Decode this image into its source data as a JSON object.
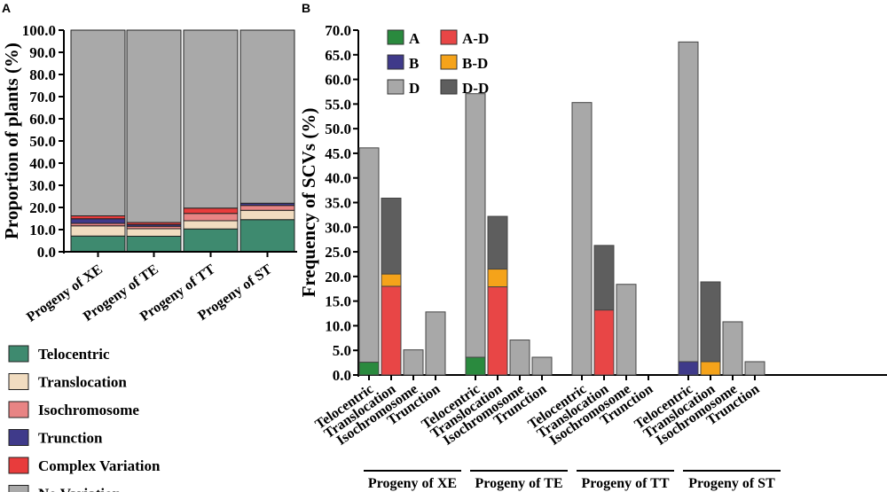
{
  "chart_data": [
    {
      "type": "bar",
      "stacked": true,
      "panel": "A",
      "ylabel": "Proportion of plants (%)",
      "ylim": [
        0,
        100
      ],
      "yticks": [
        "0.0",
        "10.0",
        "20.0",
        "30.0",
        "40.0",
        "50.0",
        "60.0",
        "70.0",
        "80.0",
        "90.0",
        "100.0"
      ],
      "categories": [
        "Progeny of XE",
        "Progeny of TE",
        "Progeny of TT",
        "Progeny of ST"
      ],
      "legend_placement": "bottom",
      "series": [
        {
          "name": "Telocentric",
          "color": "#3e8a6f",
          "values": [
            7.1,
            7.0,
            10.3,
            14.5
          ]
        },
        {
          "name": "Translocation",
          "color": "#f1dcc0",
          "values": [
            4.6,
            3.4,
            3.7,
            4.2
          ]
        },
        {
          "name": "Isochromosome",
          "color": "#e88484",
          "values": [
            1.1,
            1.1,
            3.3,
            2.2
          ]
        },
        {
          "name": "Trunction",
          "color": "#3f3a8a",
          "values": [
            2.1,
            0.8,
            0,
            1.0
          ]
        },
        {
          "name": "Complex Variation",
          "color": "#e83c3c",
          "values": [
            1.3,
            0.9,
            2.4,
            0
          ]
        },
        {
          "name": "No Variation",
          "color": "#a9a9a9",
          "values": [
            83.8,
            86.8,
            80.3,
            78.1
          ]
        }
      ]
    },
    {
      "type": "bar",
      "stacked": true,
      "panel": "B",
      "ylabel": "Frequency of SCVs (%)",
      "ylim": [
        0,
        70
      ],
      "yticks": [
        "0.0",
        "5.0",
        "10.0",
        "15.0",
        "20.0",
        "25.0",
        "30.0",
        "35.0",
        "40.0",
        "45.0",
        "50.0",
        "55.0",
        "60.0",
        "65.0",
        "70.0"
      ],
      "groups": [
        "Progeny of XE",
        "Progeny of TE",
        "Progeny of TT",
        "Progeny of ST"
      ],
      "categories": [
        "Telocentric",
        "Translocation",
        "Isochromosome",
        "Trunction"
      ],
      "legend_placement": "top-left",
      "series": [
        {
          "name": "A",
          "color": "#2a8a3e",
          "values": [
            [
              2.6,
              0,
              0,
              0
            ],
            [
              3.6,
              0,
              0,
              0
            ],
            [
              0,
              0,
              0,
              0
            ],
            [
              0,
              0,
              0,
              0
            ]
          ]
        },
        {
          "name": "B",
          "color": "#3f3a8a",
          "values": [
            [
              0,
              0,
              0,
              0
            ],
            [
              0,
              0,
              0,
              0
            ],
            [
              0,
              0,
              0,
              0
            ],
            [
              2.7,
              0,
              0,
              0
            ]
          ]
        },
        {
          "name": "D",
          "color": "#a8a8a8",
          "values": [
            [
              43.5,
              0,
              5.1,
              12.8
            ],
            [
              53.5,
              0,
              7.1,
              3.6
            ],
            [
              55.3,
              0,
              18.4,
              0
            ],
            [
              64.9,
              0,
              10.8,
              2.7
            ]
          ]
        },
        {
          "name": "A-D",
          "color": "#e84646",
          "values": [
            [
              0,
              18.0,
              0,
              0
            ],
            [
              0,
              17.9,
              0,
              0
            ],
            [
              0,
              13.2,
              0,
              0
            ],
            [
              0,
              0,
              0,
              0
            ]
          ]
        },
        {
          "name": "B-D",
          "color": "#f5a31a",
          "values": [
            [
              0,
              2.5,
              0,
              0
            ],
            [
              0,
              3.6,
              0,
              0
            ],
            [
              0,
              0,
              0,
              0
            ],
            [
              0,
              2.7,
              0,
              0
            ]
          ]
        },
        {
          "name": "D-D",
          "color": "#5e5e5e",
          "values": [
            [
              0,
              15.4,
              0,
              0
            ],
            [
              0,
              10.7,
              0,
              0
            ],
            [
              0,
              13.1,
              0,
              0
            ],
            [
              0,
              16.2,
              0,
              0
            ]
          ]
        }
      ]
    }
  ],
  "panels": {
    "a": "A",
    "b": "B"
  }
}
